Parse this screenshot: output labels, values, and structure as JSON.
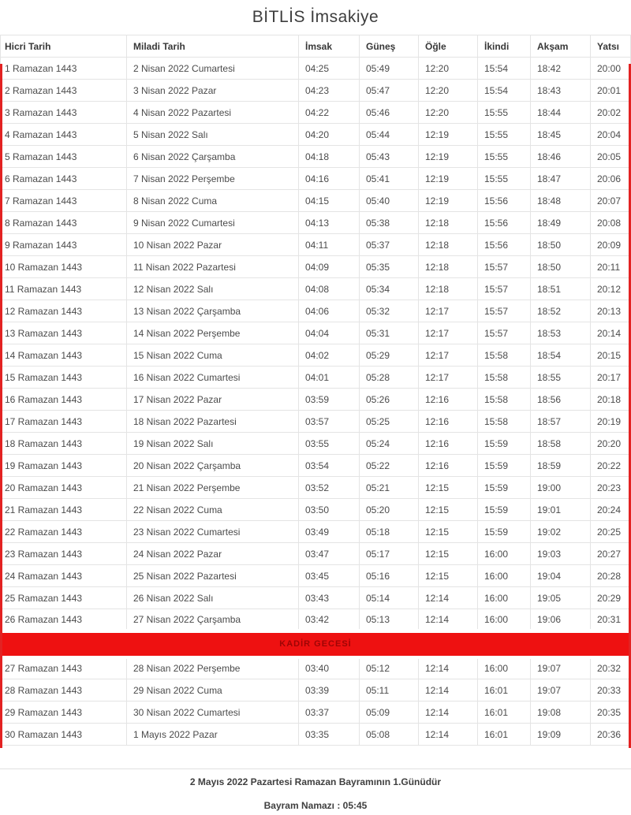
{
  "title": "BİTLİS İmsakiye",
  "table": {
    "columns": [
      "Hicri Tarih",
      "Miladi Tarih",
      "İmsak",
      "Güneş",
      "Öğle",
      "İkindi",
      "Akşam",
      "Yatsı"
    ],
    "banner": {
      "label": "KADİR GECESİ",
      "after_row": 26
    },
    "rows": [
      {
        "hicri": "1 Ramazan 1443",
        "miladi": "2 Nisan 2022 Cumartesi",
        "times": [
          "04:25",
          "05:49",
          "12:20",
          "15:54",
          "18:42",
          "20:00"
        ]
      },
      {
        "hicri": "2 Ramazan 1443",
        "miladi": "3 Nisan 2022 Pazar",
        "times": [
          "04:23",
          "05:47",
          "12:20",
          "15:54",
          "18:43",
          "20:01"
        ]
      },
      {
        "hicri": "3 Ramazan 1443",
        "miladi": "4 Nisan 2022 Pazartesi",
        "times": [
          "04:22",
          "05:46",
          "12:20",
          "15:55",
          "18:44",
          "20:02"
        ]
      },
      {
        "hicri": "4 Ramazan 1443",
        "miladi": "5 Nisan 2022 Salı",
        "times": [
          "04:20",
          "05:44",
          "12:19",
          "15:55",
          "18:45",
          "20:04"
        ]
      },
      {
        "hicri": "5 Ramazan 1443",
        "miladi": "6 Nisan 2022 Çarşamba",
        "times": [
          "04:18",
          "05:43",
          "12:19",
          "15:55",
          "18:46",
          "20:05"
        ]
      },
      {
        "hicri": "6 Ramazan 1443",
        "miladi": "7 Nisan 2022 Perşembe",
        "times": [
          "04:16",
          "05:41",
          "12:19",
          "15:55",
          "18:47",
          "20:06"
        ]
      },
      {
        "hicri": "7 Ramazan 1443",
        "miladi": "8 Nisan 2022 Cuma",
        "times": [
          "04:15",
          "05:40",
          "12:19",
          "15:56",
          "18:48",
          "20:07"
        ]
      },
      {
        "hicri": "8 Ramazan 1443",
        "miladi": "9 Nisan 2022 Cumartesi",
        "times": [
          "04:13",
          "05:38",
          "12:18",
          "15:56",
          "18:49",
          "20:08"
        ]
      },
      {
        "hicri": "9 Ramazan 1443",
        "miladi": "10 Nisan 2022 Pazar",
        "times": [
          "04:11",
          "05:37",
          "12:18",
          "15:56",
          "18:50",
          "20:09"
        ]
      },
      {
        "hicri": "10 Ramazan 1443",
        "miladi": "11 Nisan 2022 Pazartesi",
        "times": [
          "04:09",
          "05:35",
          "12:18",
          "15:57",
          "18:50",
          "20:11"
        ]
      },
      {
        "hicri": "11 Ramazan 1443",
        "miladi": "12 Nisan 2022 Salı",
        "times": [
          "04:08",
          "05:34",
          "12:18",
          "15:57",
          "18:51",
          "20:12"
        ]
      },
      {
        "hicri": "12 Ramazan 1443",
        "miladi": "13 Nisan 2022 Çarşamba",
        "times": [
          "04:06",
          "05:32",
          "12:17",
          "15:57",
          "18:52",
          "20:13"
        ]
      },
      {
        "hicri": "13 Ramazan 1443",
        "miladi": "14 Nisan 2022 Perşembe",
        "times": [
          "04:04",
          "05:31",
          "12:17",
          "15:57",
          "18:53",
          "20:14"
        ]
      },
      {
        "hicri": "14 Ramazan 1443",
        "miladi": "15 Nisan 2022 Cuma",
        "times": [
          "04:02",
          "05:29",
          "12:17",
          "15:58",
          "18:54",
          "20:15"
        ]
      },
      {
        "hicri": "15 Ramazan 1443",
        "miladi": "16 Nisan 2022 Cumartesi",
        "times": [
          "04:01",
          "05:28",
          "12:17",
          "15:58",
          "18:55",
          "20:17"
        ]
      },
      {
        "hicri": "16 Ramazan 1443",
        "miladi": "17 Nisan 2022 Pazar",
        "times": [
          "03:59",
          "05:26",
          "12:16",
          "15:58",
          "18:56",
          "20:18"
        ]
      },
      {
        "hicri": "17 Ramazan 1443",
        "miladi": "18 Nisan 2022 Pazartesi",
        "times": [
          "03:57",
          "05:25",
          "12:16",
          "15:58",
          "18:57",
          "20:19"
        ]
      },
      {
        "hicri": "18 Ramazan 1443",
        "miladi": "19 Nisan 2022 Salı",
        "times": [
          "03:55",
          "05:24",
          "12:16",
          "15:59",
          "18:58",
          "20:20"
        ]
      },
      {
        "hicri": "19 Ramazan 1443",
        "miladi": "20 Nisan 2022 Çarşamba",
        "times": [
          "03:54",
          "05:22",
          "12:16",
          "15:59",
          "18:59",
          "20:22"
        ]
      },
      {
        "hicri": "20 Ramazan 1443",
        "miladi": "21 Nisan 2022 Perşembe",
        "times": [
          "03:52",
          "05:21",
          "12:15",
          "15:59",
          "19:00",
          "20:23"
        ]
      },
      {
        "hicri": "21 Ramazan 1443",
        "miladi": "22 Nisan 2022 Cuma",
        "times": [
          "03:50",
          "05:20",
          "12:15",
          "15:59",
          "19:01",
          "20:24"
        ]
      },
      {
        "hicri": "22 Ramazan 1443",
        "miladi": "23 Nisan 2022 Cumartesi",
        "times": [
          "03:49",
          "05:18",
          "12:15",
          "15:59",
          "19:02",
          "20:25"
        ]
      },
      {
        "hicri": "23 Ramazan 1443",
        "miladi": "24 Nisan 2022 Pazar",
        "times": [
          "03:47",
          "05:17",
          "12:15",
          "16:00",
          "19:03",
          "20:27"
        ]
      },
      {
        "hicri": "24 Ramazan 1443",
        "miladi": "25 Nisan 2022 Pazartesi",
        "times": [
          "03:45",
          "05:16",
          "12:15",
          "16:00",
          "19:04",
          "20:28"
        ]
      },
      {
        "hicri": "25 Ramazan 1443",
        "miladi": "26 Nisan 2022 Salı",
        "times": [
          "03:43",
          "05:14",
          "12:14",
          "16:00",
          "19:05",
          "20:29"
        ]
      },
      {
        "hicri": "26 Ramazan 1443",
        "miladi": "27 Nisan 2022 Çarşamba",
        "times": [
          "03:42",
          "05:13",
          "12:14",
          "16:00",
          "19:06",
          "20:31"
        ]
      },
      {
        "hicri": "27 Ramazan 1443",
        "miladi": "28 Nisan 2022 Perşembe",
        "times": [
          "03:40",
          "05:12",
          "12:14",
          "16:00",
          "19:07",
          "20:32"
        ]
      },
      {
        "hicri": "28 Ramazan 1443",
        "miladi": "29 Nisan 2022 Cuma",
        "times": [
          "03:39",
          "05:11",
          "12:14",
          "16:01",
          "19:07",
          "20:33"
        ]
      },
      {
        "hicri": "29 Ramazan 1443",
        "miladi": "30 Nisan 2022 Cumartesi",
        "times": [
          "03:37",
          "05:09",
          "12:14",
          "16:01",
          "19:08",
          "20:35"
        ]
      },
      {
        "hicri": "30 Ramazan 1443",
        "miladi": "1 Mayıs 2022 Pazar",
        "times": [
          "03:35",
          "05:08",
          "12:14",
          "16:01",
          "19:09",
          "20:36"
        ]
      }
    ]
  },
  "footer": {
    "line1": "2 Mayıs 2022 Pazartesi Ramazan Bayramının 1.Günüdür",
    "line2": "Bayram Namazı : 05:45"
  },
  "colors": {
    "banner_bg": "#ee1111",
    "banner_text": "#9e0505",
    "edge_bar": "#e32222",
    "text": "#4b4b4b",
    "border": "#e4e4e4"
  }
}
